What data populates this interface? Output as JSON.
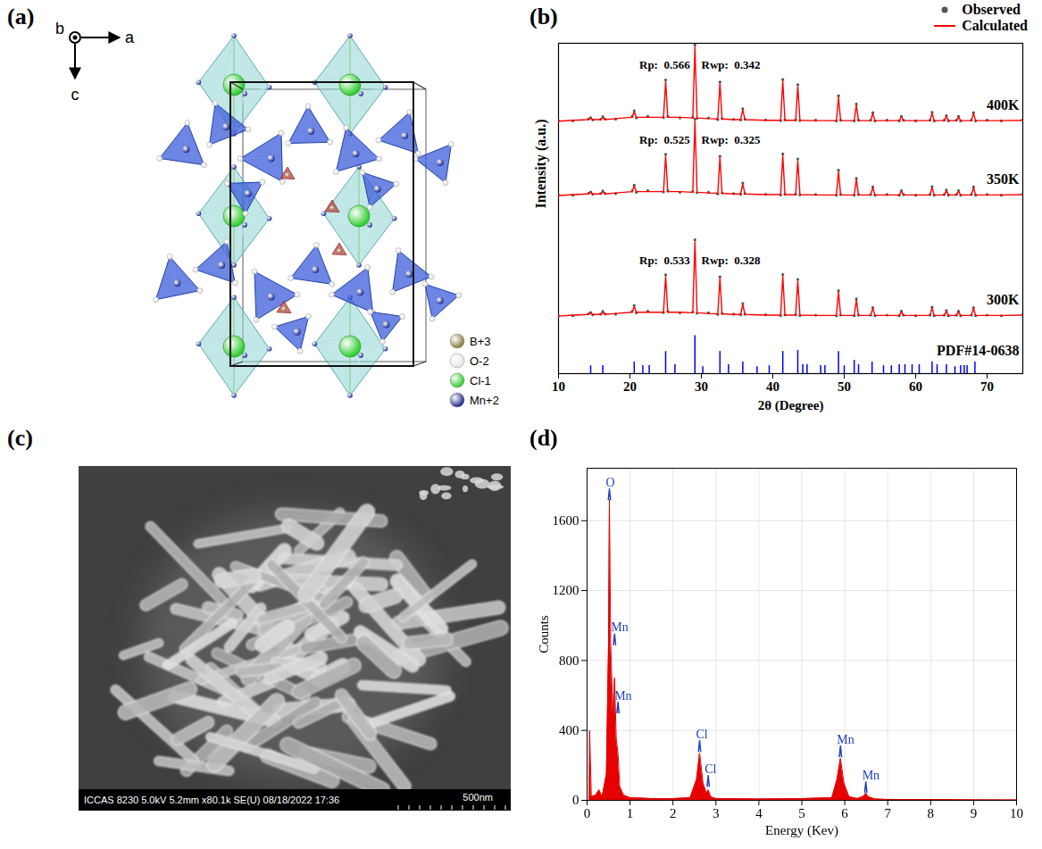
{
  "chart_data": [
    {
      "type": "line",
      "panel_label": "(b)",
      "xlabel": "2θ (Degree)",
      "ylabel": "Intensity (a.u.)",
      "x": [
        10,
        12,
        14.2,
        14.5,
        14.8,
        15.9,
        16.2,
        16.5,
        18,
        20.3,
        20.6,
        20.9,
        22.5,
        24.7,
        25.0,
        25.3,
        27,
        28.8,
        29.1,
        29.4,
        31,
        32.3,
        32.6,
        32.9,
        34.5,
        35.5,
        35.8,
        36.1,
        39,
        41.1,
        41.4,
        41.7,
        43.2,
        43.5,
        43.8,
        46,
        48.9,
        49.2,
        49.5,
        51.4,
        51.7,
        52.0,
        53.7,
        54.0,
        54.3,
        56,
        57.7,
        58.0,
        58.3,
        60,
        62.0,
        62.3,
        62.6,
        64.0,
        64.3,
        64.6,
        65.7,
        66.0,
        66.3,
        67.8,
        68.1,
        68.4,
        70,
        72,
        75
      ],
      "xlim": [
        10,
        75
      ],
      "xticks": [
        10,
        20,
        30,
        40,
        50,
        60,
        70
      ],
      "ylim": [
        0,
        100
      ],
      "tick_labels": "x",
      "legend": "upper right",
      "rp_label": "Rp:",
      "rwp_label": "Rwp:",
      "patterns": [
        {
          "name": "300K",
          "rp": 0.533,
          "rwp": 0.328
        },
        {
          "name": "350K",
          "rp": 0.525,
          "rwp": 0.325
        },
        {
          "name": "400K",
          "rp": 0.566,
          "rwp": 0.342
        }
      ],
      "series": [
        {
          "name": "Observed",
          "type": "scatter",
          "marker": "circle",
          "color": "#555555",
          "values": [
            [
              17.6,
              17.5,
              18.1,
              18.5,
              17.8,
              18.0,
              18.8,
              18.1,
              18.0,
              18.8,
              20.6,
              18.4,
              18.9,
              18.5,
              29.9,
              18.8,
              18.4,
              18.6,
              40.5,
              18.3,
              18.4,
              17.9,
              29.3,
              18.2,
              18.0,
              17.8,
              21.2,
              18.0,
              17.8,
              17.6,
              30.0,
              17.8,
              17.8,
              28.5,
              17.6,
              17.7,
              17.5,
              25.1,
              17.7,
              17.5,
              22.6,
              17.7,
              17.7,
              20.0,
              17.5,
              17.7,
              17.5,
              18.9,
              17.7,
              17.5,
              17.7,
              20.1,
              17.5,
              17.7,
              19.1,
              17.5,
              17.7,
              18.9,
              17.5,
              17.7,
              20.0,
              17.5,
              17.7,
              17.5,
              17.8
            ],
            [
              54.1,
              54.0,
              54.6,
              55.0,
              54.3,
              54.5,
              55.3,
              54.6,
              54.5,
              55.3,
              57.1,
              54.9,
              55.4,
              55.0,
              66.4,
              55.3,
              54.9,
              55.1,
              77.0,
              54.8,
              54.9,
              54.4,
              65.8,
              54.7,
              54.5,
              54.3,
              57.7,
              54.5,
              54.3,
              54.1,
              66.5,
              54.3,
              54.3,
              65.0,
              54.1,
              54.2,
              54.0,
              61.6,
              54.2,
              54.0,
              59.1,
              54.2,
              54.2,
              56.5,
              54.0,
              54.2,
              54.0,
              55.4,
              54.2,
              54.0,
              54.2,
              56.6,
              54.0,
              54.2,
              55.6,
              54.0,
              54.2,
              55.4,
              54.0,
              54.2,
              56.5,
              54.0,
              54.2,
              54.0,
              54.3
            ],
            [
              76.6,
              76.5,
              77.1,
              77.5,
              76.8,
              77.0,
              77.8,
              77.1,
              77.0,
              77.8,
              79.6,
              77.4,
              77.9,
              77.5,
              88.9,
              77.8,
              77.4,
              77.6,
              99.5,
              77.3,
              77.4,
              76.9,
              88.3,
              77.2,
              77.0,
              76.8,
              80.2,
              77.0,
              76.8,
              76.6,
              89.0,
              76.8,
              76.8,
              87.5,
              76.6,
              76.7,
              76.5,
              84.1,
              76.7,
              76.5,
              81.6,
              76.7,
              76.7,
              79.0,
              76.5,
              76.7,
              76.5,
              77.9,
              76.7,
              76.5,
              76.7,
              79.1,
              76.5,
              76.7,
              78.1,
              76.5,
              76.7,
              77.9,
              76.5,
              76.7,
              79.0,
              76.5,
              76.7,
              76.5,
              76.8
            ]
          ]
        },
        {
          "name": "Calculated",
          "type": "line",
          "line_style": "solid",
          "color": "#ff0000",
          "values": [
            [
              17.4,
              17.7,
              17.9,
              18.4,
              17.9,
              17.9,
              18.6,
              17.9,
              18.2,
              18.6,
              20.3,
              18.6,
              18.6,
              18.6,
              29.4,
              18.6,
              18.6,
              18.4,
              39.9,
              18.4,
              18.2,
              18.1,
              28.9,
              18.1,
              17.9,
              17.9,
              20.9,
              17.9,
              17.7,
              17.7,
              29.5,
              17.7,
              17.7,
              28.0,
              17.7,
              17.6,
              17.6,
              24.7,
              17.6,
              17.6,
              22.3,
              17.6,
              17.6,
              19.8,
              17.6,
              17.6,
              17.6,
              18.7,
              17.6,
              17.6,
              17.6,
              19.8,
              17.6,
              17.6,
              18.9,
              17.6,
              17.6,
              18.7,
              17.6,
              17.6,
              19.8,
              17.6,
              17.6,
              17.6,
              17.7
            ],
            [
              53.9,
              54.2,
              54.4,
              54.9,
              54.4,
              54.4,
              55.1,
              54.4,
              54.7,
              55.1,
              56.8,
              55.1,
              55.1,
              55.1,
              65.9,
              55.1,
              55.1,
              54.9,
              76.4,
              54.9,
              54.7,
              54.6,
              65.4,
              54.6,
              54.4,
              54.4,
              57.4,
              54.4,
              54.2,
              54.2,
              66.0,
              54.2,
              54.2,
              64.5,
              54.2,
              54.1,
              54.1,
              61.2,
              54.1,
              54.1,
              58.8,
              54.1,
              54.1,
              56.3,
              54.1,
              54.1,
              54.1,
              55.2,
              54.1,
              54.1,
              54.1,
              56.3,
              54.1,
              54.1,
              55.4,
              54.1,
              54.1,
              55.2,
              54.1,
              54.1,
              56.3,
              54.1,
              54.1,
              54.1,
              54.2
            ],
            [
              76.4,
              76.7,
              76.9,
              77.4,
              76.9,
              76.9,
              77.6,
              76.9,
              77.2,
              77.6,
              79.3,
              77.6,
              77.6,
              77.6,
              88.4,
              77.6,
              77.6,
              77.4,
              98.9,
              77.4,
              77.2,
              77.1,
              87.9,
              77.1,
              76.9,
              76.9,
              79.9,
              76.9,
              76.7,
              76.7,
              88.5,
              76.7,
              76.7,
              87.0,
              76.7,
              76.6,
              76.6,
              83.7,
              76.6,
              76.6,
              81.3,
              76.6,
              76.6,
              78.8,
              76.6,
              76.6,
              76.6,
              77.7,
              76.6,
              76.6,
              76.6,
              78.8,
              76.6,
              76.6,
              77.9,
              76.6,
              76.6,
              77.7,
              76.6,
              76.6,
              78.8,
              76.6,
              76.6,
              76.6,
              76.7
            ]
          ]
        }
      ],
      "reference": {
        "label": "PDF#14-0638",
        "color": "#0000ff",
        "positions": [
          14.5,
          16.2,
          20.6,
          21.8,
          22.7,
          25.0,
          26.3,
          29.1,
          30.2,
          32.6,
          33.8,
          35.8,
          37.8,
          39.5,
          41.4,
          43.5,
          44.2,
          44.8,
          46.7,
          47.3,
          49.2,
          50.0,
          51.4,
          52.0,
          53.9,
          55.5,
          56.6,
          57.7,
          58.5,
          59.5,
          60.5,
          62.3,
          63.0,
          64.3,
          65.5,
          66.3,
          66.8,
          67.2,
          68.3
        ],
        "intensities": [
          2.4,
          2.4,
          3.5,
          2.4,
          2.4,
          6.7,
          2.7,
          11.5,
          2.1,
          6.7,
          2.7,
          3.5,
          2.1,
          2.4,
          6.7,
          7.0,
          2.7,
          2.7,
          2.4,
          2.4,
          6.7,
          2.4,
          4.0,
          2.7,
          3.5,
          2.4,
          2.4,
          2.7,
          2.7,
          2.7,
          2.7,
          3.5,
          2.7,
          2.7,
          2.1,
          2.4,
          2.4,
          2.4,
          3.5
        ]
      }
    },
    {
      "type": "area",
      "panel_label": "(d)",
      "xlabel": "Energy (Kev)",
      "ylabel": "Counts",
      "x": [
        0,
        0.05,
        0.06,
        0.1,
        0.2,
        0.28,
        0.35,
        0.45,
        0.5,
        0.52,
        0.55,
        0.6,
        0.64,
        0.68,
        0.72,
        0.76,
        0.85,
        1.0,
        1.5,
        2.0,
        2.4,
        2.55,
        2.62,
        2.7,
        2.78,
        2.82,
        2.88,
        3.0,
        4.0,
        5.0,
        5.7,
        5.82,
        5.9,
        5.98,
        6.1,
        6.3,
        6.45,
        6.49,
        6.55,
        6.7,
        7.0,
        8.0,
        9.0,
        10.0
      ],
      "values": [
        0,
        0,
        400,
        20,
        30,
        60,
        20,
        150,
        900,
        1720,
        900,
        500,
        700,
        350,
        270,
        80,
        30,
        15,
        10,
        10,
        15,
        120,
        270,
        100,
        40,
        60,
        20,
        10,
        8,
        10,
        15,
        120,
        240,
        100,
        20,
        10,
        25,
        40,
        20,
        8,
        5,
        5,
        3,
        2
      ],
      "color": "#e60000",
      "xlim": [
        0,
        10
      ],
      "xticks": [
        0,
        1,
        2,
        3,
        4,
        5,
        6,
        7,
        8,
        9,
        10
      ],
      "ylim": [
        0,
        1900
      ],
      "yticks": [
        0,
        400,
        800,
        1200,
        1600
      ],
      "grid": true,
      "annotations": [
        {
          "text": "O",
          "x": 0.52,
          "y": 1720
        },
        {
          "text": "Mn",
          "x": 0.64,
          "y": 890
        },
        {
          "text": "Mn",
          "x": 0.72,
          "y": 500
        },
        {
          "text": "Cl",
          "x": 2.62,
          "y": 280
        },
        {
          "text": "Cl",
          "x": 2.82,
          "y": 80
        },
        {
          "text": "Mn",
          "x": 5.9,
          "y": 250
        },
        {
          "text": "Mn",
          "x": 6.49,
          "y": 45
        }
      ]
    }
  ],
  "structure_panel": {
    "panel_label": "(a)",
    "axes": [
      "b",
      "a",
      "c"
    ],
    "atoms": [
      {
        "label": "B+3",
        "color": "#8a7b3c"
      },
      {
        "label": "O-2",
        "color": "#e6e6e6"
      },
      {
        "label": "Cl-1",
        "color": "#2ecc2e"
      },
      {
        "label": "Mn+2",
        "color": "#1c2a8c"
      }
    ]
  },
  "sem_panel": {
    "panel_label": "(c)",
    "caption": "ICCAS 8230 5.0kV 5.2mm x80.1k SE(U) 08/18/2022 17:36",
    "scale_bar": "500nm"
  }
}
